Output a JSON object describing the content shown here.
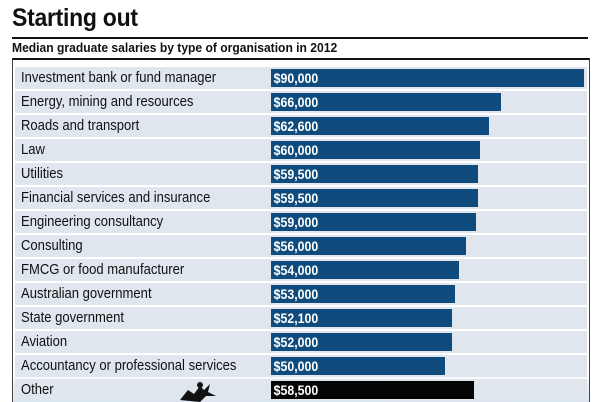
{
  "header": {
    "title": "Starting out",
    "subtitle": "Median graduate salaries by type of organisation in 2012"
  },
  "colors": {
    "bar": "#104b7d",
    "other_bar": "#050505",
    "row_bg": "#dfe6ee"
  },
  "chart_data": {
    "type": "bar",
    "orientation": "horizontal",
    "title": "Starting out",
    "subtitle": "Median graduate salaries by type of organisation in 2012",
    "xlabel": "",
    "ylabel": "",
    "xlim": [
      0,
      90000
    ],
    "grid": false,
    "legend": "none",
    "categories": [
      "Investment bank or fund manager",
      "Energy, mining and resources",
      "Roads and transport",
      "Law",
      "Utilities",
      "Financial services and insurance",
      "Engineering consultancy",
      "Consulting",
      "FMCG or food manufacturer",
      "Australian government",
      "State government",
      "Aviation",
      "Accountancy or professional services",
      "Other"
    ],
    "values": [
      90000,
      66000,
      62600,
      60000,
      59500,
      59500,
      59000,
      56000,
      54000,
      53000,
      52100,
      52000,
      50000,
      58500
    ],
    "value_labels": [
      "$90,000",
      "$66,000",
      "$62,600",
      "$60,000",
      "$59,500",
      "$59,500",
      "$59,000",
      "$56,000",
      "$54,000",
      "$53,000",
      "$52,100",
      "$52,000",
      "$50,000",
      "$58,500"
    ]
  }
}
